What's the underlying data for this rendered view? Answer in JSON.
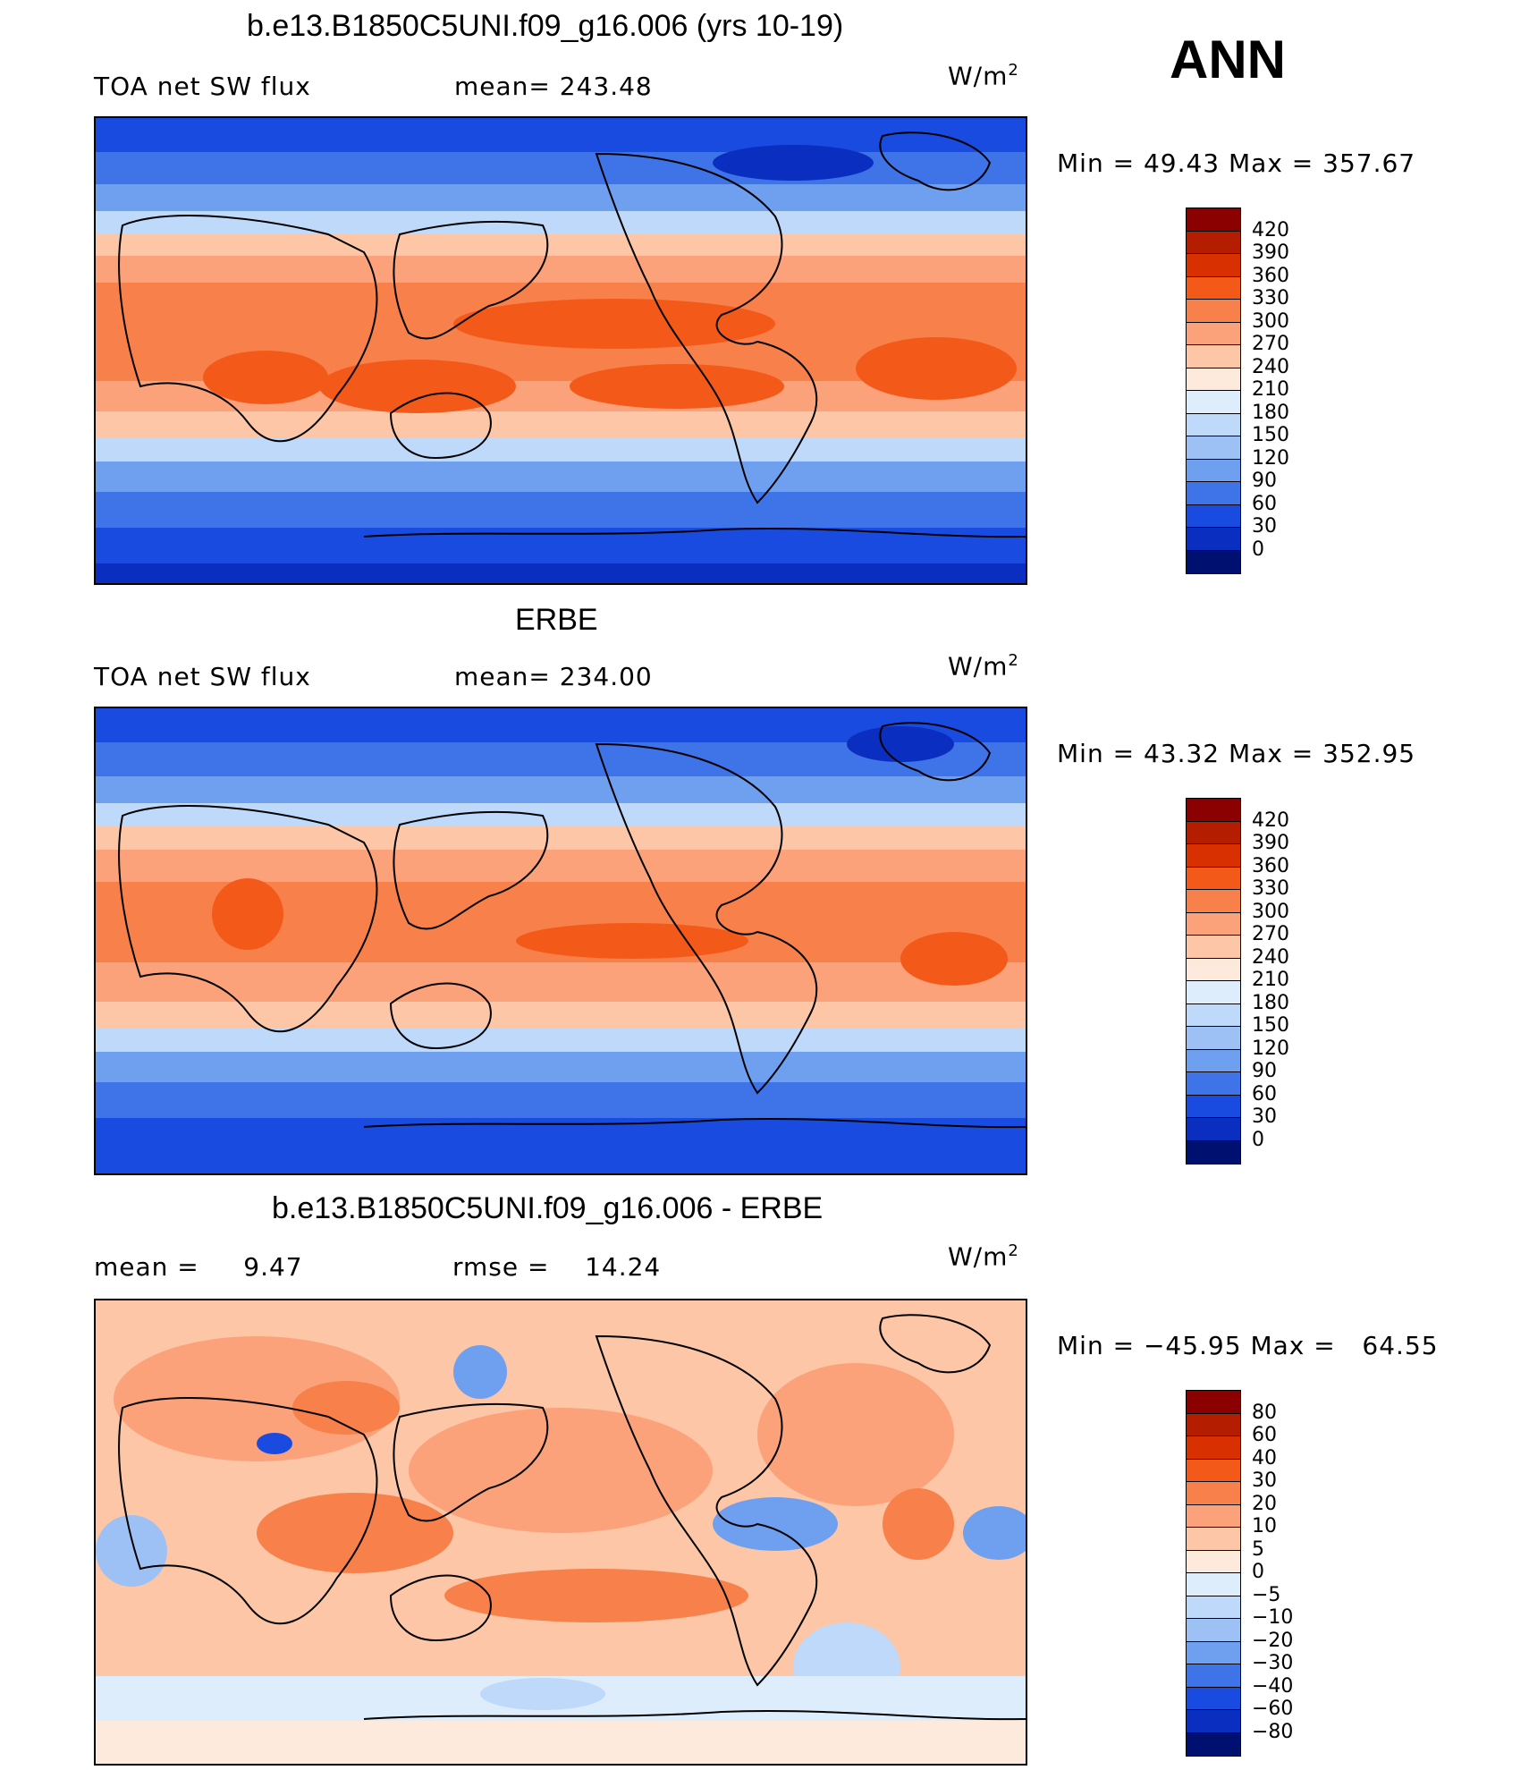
{
  "season": "ANN",
  "unit_base": "W/m",
  "unit_exp": "2",
  "panels": [
    {
      "title": "b.e13.B1850C5UNI.f09_g16.006 (yrs 10-19)",
      "left_label": "TOA net SW flux",
      "center_label": "mean= 243.48",
      "minmax": "Min =   49.43 Max = 357.67",
      "levels": [
        "420",
        "390",
        "360",
        "330",
        "300",
        "270",
        "240",
        "210",
        "180",
        "150",
        "120",
        "90",
        "60",
        "30",
        "0"
      ]
    },
    {
      "title": "ERBE",
      "left_label": "TOA net SW flux",
      "center_label": "mean= 234.00",
      "minmax": "Min =   43.32 Max = 352.95",
      "levels": [
        "420",
        "390",
        "360",
        "330",
        "300",
        "270",
        "240",
        "210",
        "180",
        "150",
        "120",
        "90",
        "60",
        "30",
        "0"
      ]
    },
    {
      "title": "b.e13.B1850C5UNI.f09_g16.006 - ERBE",
      "left_label": "mean =     9.47",
      "center_label": "rmse =    14.24",
      "minmax": "Min = −45.95 Max =   64.55",
      "levels": [
        "80",
        "60",
        "40",
        "30",
        "20",
        "10",
        "5",
        "0",
        "−5",
        "−10",
        "−20",
        "−30",
        "−40",
        "−60",
        "−80"
      ]
    }
  ],
  "colors": {
    "scale16": [
      "#8b0000",
      "#b51d00",
      "#d93000",
      "#f35a1a",
      "#f8804a",
      "#fba27a",
      "#fdc6a6",
      "#feeadc",
      "#deedfb",
      "#bed9f9",
      "#9dc1f5",
      "#6fa0ef",
      "#3f73e8",
      "#1a4be0",
      "#0a2ec0",
      "#001070"
    ]
  }
}
